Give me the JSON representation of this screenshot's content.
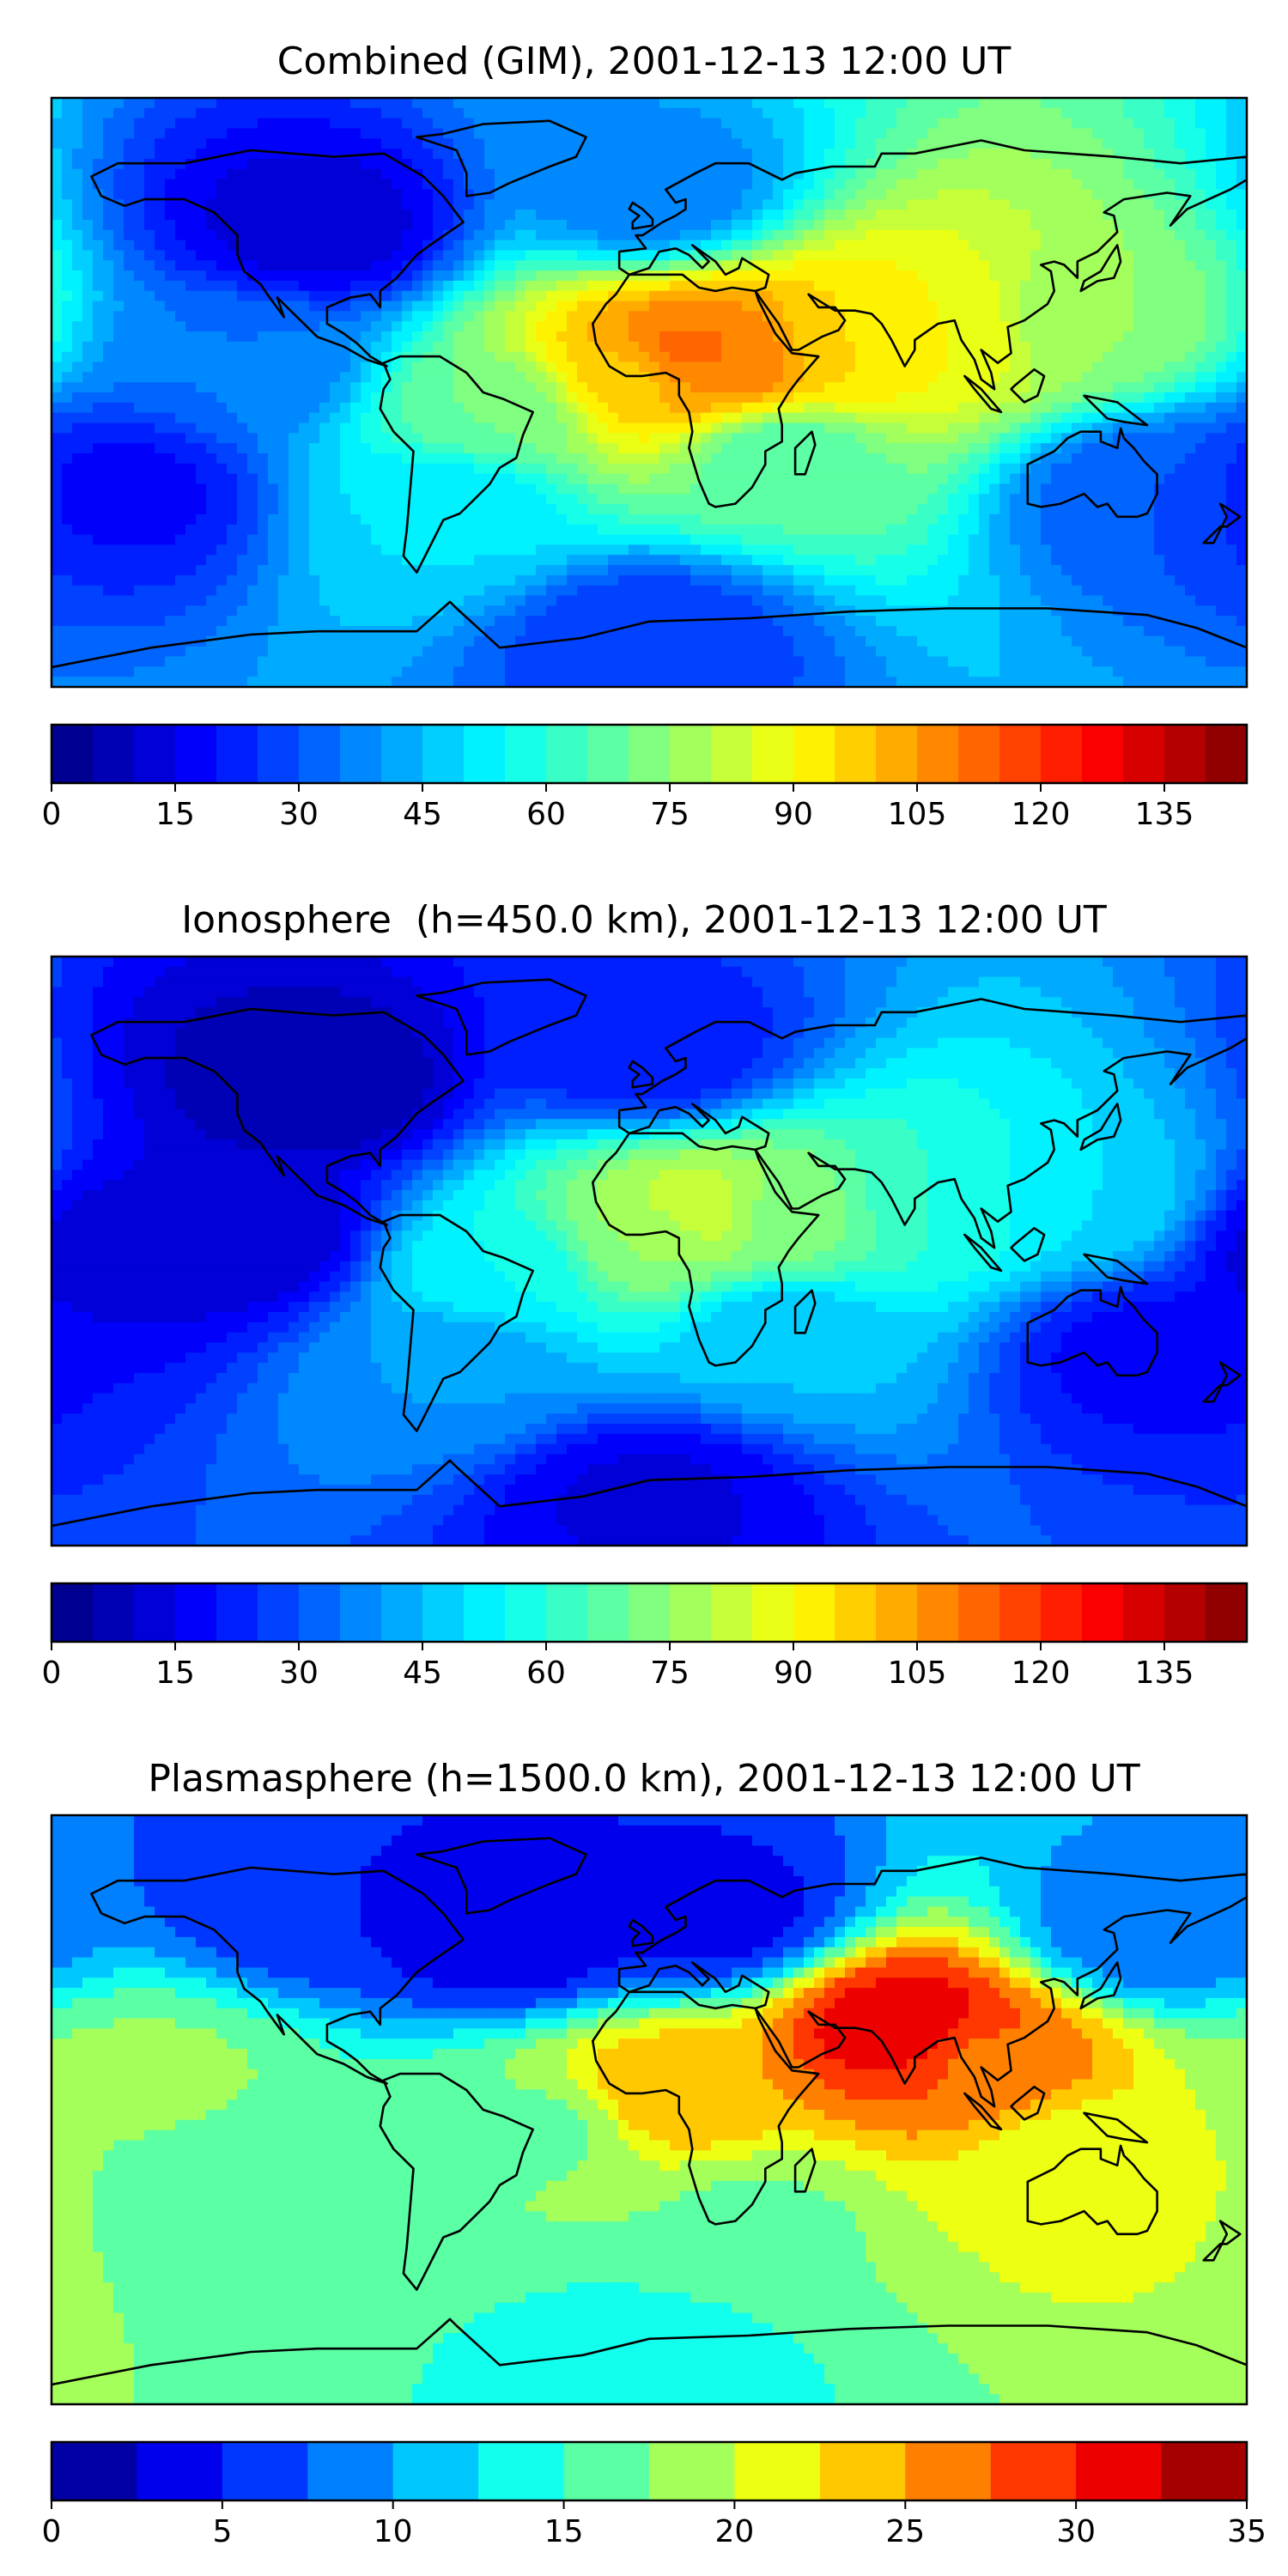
{
  "chart_data": [
    {
      "type": "heatmap",
      "title": "Combined (GIM), 2001-12-13 12:00 UT",
      "colorbar": {
        "min": 0,
        "max": 145,
        "levels": 29,
        "ticks": [
          0,
          15,
          30,
          45,
          60,
          75,
          90,
          105,
          120,
          135
        ],
        "colormap": "jet"
      },
      "features": [
        {
          "lon": 10,
          "lat": 12,
          "value": 112
        },
        {
          "lon": 25,
          "lat": 10,
          "value": 110
        },
        {
          "lon": -5,
          "lat": 5,
          "value": 98
        },
        {
          "lon": 90,
          "lat": 18,
          "value": 90
        },
        {
          "lon": 60,
          "lat": 15,
          "value": 95
        },
        {
          "lon": 130,
          "lat": 20,
          "value": 75
        },
        {
          "lon": -45,
          "lat": -5,
          "value": 70
        },
        {
          "lon": -60,
          "lat": -35,
          "value": 50
        },
        {
          "lon": 40,
          "lat": -20,
          "value": 65
        },
        {
          "lon": -120,
          "lat": 10,
          "value": 35
        },
        {
          "lon": -160,
          "lat": -30,
          "value": 18
        },
        {
          "lon": 150,
          "lat": -30,
          "value": 30
        },
        {
          "lon": 0,
          "lat": 60,
          "value": 35
        },
        {
          "lon": -100,
          "lat": 50,
          "value": 12
        },
        {
          "lon": 0,
          "lat": -75,
          "value": 25
        }
      ]
    },
    {
      "type": "heatmap",
      "title": "Ionosphere  (h=450.0 km), 2001-12-13 12:00 UT",
      "colorbar": {
        "min": 0,
        "max": 145,
        "levels": 29,
        "ticks": [
          0,
          15,
          30,
          45,
          60,
          75,
          90,
          105,
          120,
          135
        ],
        "colormap": "jet"
      },
      "features": [
        {
          "lon": 15,
          "lat": 12,
          "value": 85
        },
        {
          "lon": 0,
          "lat": 5,
          "value": 75
        },
        {
          "lon": 40,
          "lat": 10,
          "value": 72
        },
        {
          "lon": 90,
          "lat": 15,
          "value": 60
        },
        {
          "lon": 130,
          "lat": 15,
          "value": 50
        },
        {
          "lon": -45,
          "lat": -5,
          "value": 55
        },
        {
          "lon": -60,
          "lat": -35,
          "value": 40
        },
        {
          "lon": 40,
          "lat": -25,
          "value": 45
        },
        {
          "lon": -120,
          "lat": 5,
          "value": 10
        },
        {
          "lon": -160,
          "lat": 0,
          "value": 12
        },
        {
          "lon": 150,
          "lat": -30,
          "value": 18
        },
        {
          "lon": 0,
          "lat": 60,
          "value": 20
        },
        {
          "lon": -100,
          "lat": 50,
          "value": 6
        },
        {
          "lon": 0,
          "lat": -75,
          "value": 14
        }
      ]
    },
    {
      "type": "heatmap",
      "title": "Plasmasphere (h=1500.0 km), 2001-12-13 12:00 UT",
      "colorbar": {
        "min": 0,
        "max": 35,
        "levels": 14,
        "ticks": [
          0,
          5,
          10,
          15,
          20,
          25,
          30,
          35
        ],
        "colormap": "jet"
      },
      "features": [
        {
          "lon": 78,
          "lat": 25,
          "value": 32
        },
        {
          "lon": 100,
          "lat": 15,
          "value": 27
        },
        {
          "lon": 5,
          "lat": 5,
          "value": 25
        },
        {
          "lon": 130,
          "lat": -15,
          "value": 21
        },
        {
          "lon": -30,
          "lat": -5,
          "value": 17
        },
        {
          "lon": -120,
          "lat": -20,
          "value": 16
        },
        {
          "lon": -150,
          "lat": 10,
          "value": 18
        },
        {
          "lon": 30,
          "lat": -35,
          "value": 17
        },
        {
          "lon": -40,
          "lat": 55,
          "value": 3
        },
        {
          "lon": 20,
          "lat": 60,
          "value": 4
        },
        {
          "lon": -100,
          "lat": 65,
          "value": 5
        },
        {
          "lon": 150,
          "lat": 55,
          "value": 8
        },
        {
          "lon": 0,
          "lat": -75,
          "value": 14
        }
      ]
    }
  ]
}
